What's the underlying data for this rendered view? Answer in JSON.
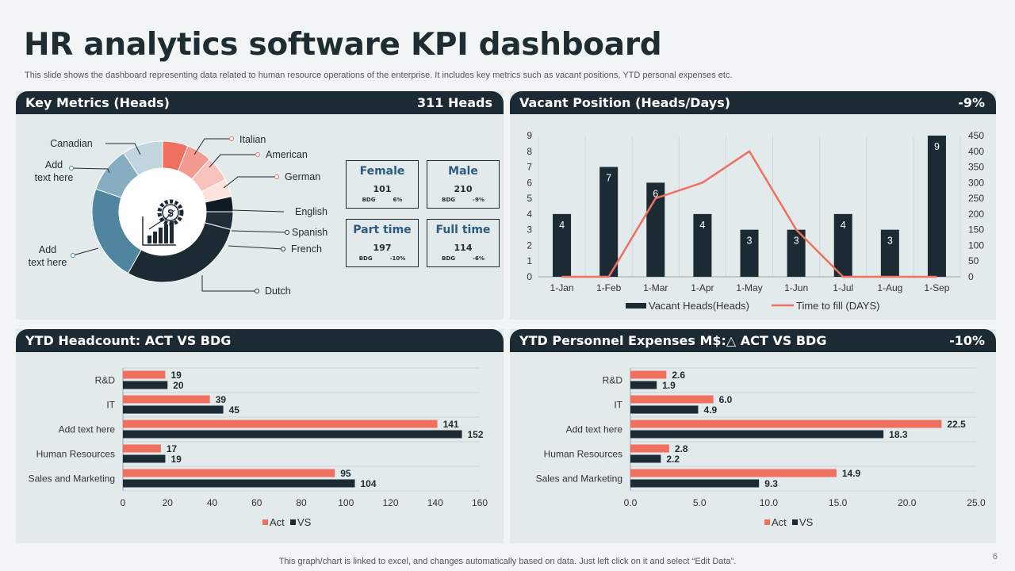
{
  "title": "HR analytics software KPI dashboard",
  "subtitle": "This slide shows the dashboard representing data related to human resource operations of the enterprise. It includes key metrics such as vacant positions, YTD personal expenses etc.",
  "footer": "This graph/chart is linked to excel,  and changes automatically based on data. Just left click on it and select “Edit Data”.",
  "page_number": "6",
  "colors": {
    "dark": "#1c2b33",
    "accent": "#f07060",
    "panel": "#e3eaec",
    "blue": "#2e5a80"
  },
  "panels": {
    "key_metrics": {
      "title": "Key Metrics (Heads)",
      "value": "311 Heads"
    },
    "vacant": {
      "title": "Vacant Position (Heads/Days)",
      "value": "-9%"
    },
    "headcount": {
      "title": "YTD Headcount: ACT VS BDG",
      "value": ""
    },
    "expenses": {
      "title": "YTD Personnel Expenses M$:△   ACT VS BDG",
      "value": "-10%"
    }
  },
  "kpis": [
    {
      "title": "Female",
      "value": "101",
      "label": "BDG",
      "change": "6%"
    },
    {
      "title": "Male",
      "value": "210",
      "label": "BDG",
      "change": "-9%"
    },
    {
      "title": "Part time",
      "value": "197",
      "label": "BDG",
      "change": "-10%"
    },
    {
      "title": "Full time",
      "value": "114",
      "label": "BDG",
      "change": "-6%"
    }
  ],
  "chart_data": [
    {
      "type": "pie",
      "title": "Key Metrics (Heads)",
      "donut": true,
      "slices": [
        {
          "label": "Italian",
          "value": 5,
          "color": "#f07060"
        },
        {
          "label": "American",
          "value": 5,
          "color": "#f59a90"
        },
        {
          "label": "German",
          "value": 5,
          "color": "#f9c3bd"
        },
        {
          "label": "English",
          "value": 3.5,
          "color": "#fde3e0"
        },
        {
          "label": "Spanish",
          "value": 3,
          "color": "#0f1b21"
        },
        {
          "label": "French",
          "value": 3.5,
          "color": "#1f2e36"
        },
        {
          "label": "Dutch",
          "value": 25,
          "color": "#1c2b33"
        },
        {
          "label": "Add text here",
          "value": 19,
          "color": "#4f859e"
        },
        {
          "label": "Add text here",
          "value": 9,
          "color": "#86aec0"
        },
        {
          "label": "Canadian",
          "value": 8,
          "color": "#c0d5de"
        }
      ]
    },
    {
      "type": "bar",
      "title": "Vacant Position (Heads/Days)",
      "categories": [
        "1-Jan",
        "1-Feb",
        "1-Mar",
        "1-Apr",
        "1-May",
        "1-Jun",
        "1-Jul",
        "1-Aug",
        "1-Sep"
      ],
      "series": [
        {
          "name": "Vacant Heads(Heads)",
          "type": "bar",
          "axis": "left",
          "values": [
            4,
            7,
            6,
            4,
            3,
            3,
            4,
            3,
            9
          ]
        },
        {
          "name": "Time to fill (DAYS)",
          "type": "line",
          "axis": "right",
          "values": [
            0,
            0,
            250,
            300,
            400,
            150,
            0,
            0,
            0
          ]
        }
      ],
      "ylim": [
        0,
        9
      ],
      "y2lim": [
        0,
        450
      ],
      "yticks": [
        0,
        1,
        2,
        3,
        4,
        5,
        6,
        7,
        8,
        9
      ],
      "y2ticks": [
        0,
        50,
        100,
        150,
        200,
        250,
        300,
        350,
        400,
        450
      ],
      "legend": "bottom"
    },
    {
      "type": "bar",
      "orientation": "horizontal",
      "title": "YTD Headcount: ACT VS BDG",
      "categories": [
        "R&D",
        "IT",
        "Add text here",
        "Human Resources",
        "Sales and Marketing"
      ],
      "series": [
        {
          "name": "Act",
          "values": [
            19,
            39,
            141,
            17,
            95
          ]
        },
        {
          "name": "VS",
          "values": [
            20,
            45,
            152,
            19,
            104
          ]
        }
      ],
      "xlim": [
        0,
        160
      ],
      "xticks": [
        "0",
        "20",
        "40",
        "60",
        "80",
        "100",
        "120",
        "140",
        "160"
      ],
      "legend": "bottom"
    },
    {
      "type": "bar",
      "orientation": "horizontal",
      "title": "YTD Personnel Expenses M$",
      "categories": [
        "R&D",
        "IT",
        "Add text here",
        "Human Resources",
        "Sales and Marketing"
      ],
      "series": [
        {
          "name": "Act",
          "values": [
            2.6,
            6.0,
            22.5,
            2.8,
            14.9
          ]
        },
        {
          "name": "VS",
          "values": [
            1.9,
            4.9,
            18.3,
            2.2,
            9.3
          ]
        }
      ],
      "xlim": [
        0,
        25
      ],
      "xticks": [
        "0.0",
        "5.0",
        "10.0",
        "15.0",
        "20.0",
        "25.0"
      ],
      "legend": "bottom"
    }
  ]
}
